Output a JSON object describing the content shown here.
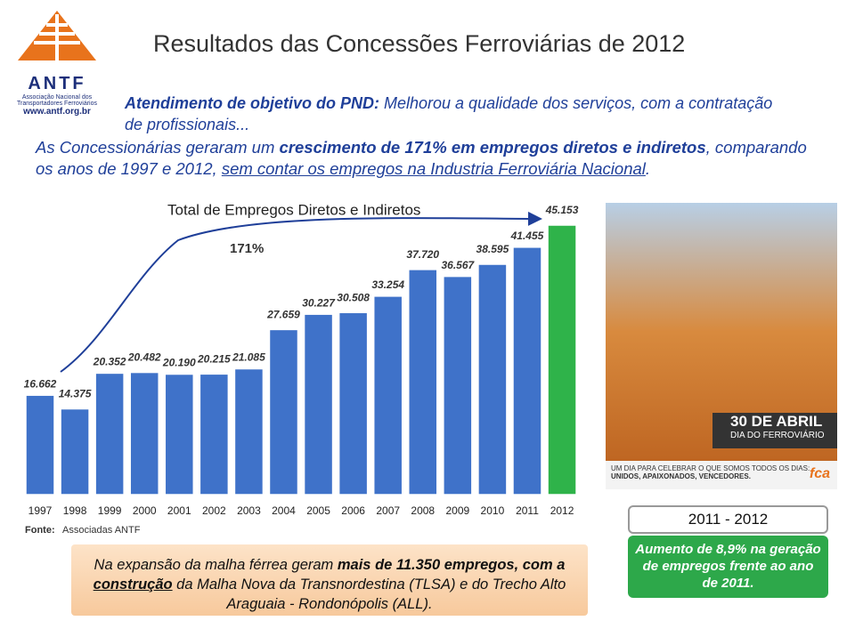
{
  "header": {
    "title": "Resultados das Concessões Ferroviárias de 2012",
    "logo": {
      "name": "ANTF",
      "org": "Associação Nacional dos Transportadores Ferroviários",
      "url": "www.antf.org.br"
    }
  },
  "intro": {
    "lead": "Atendimento de objetivo do PND:",
    "lead_rest": " Melhorou a qualidade dos serviços, com a contratação de profissionais...",
    "segments": [
      "As Concessionárias geraram um ",
      "crescimento de 171% em empregos diretos e indiretos",
      ", comparando os anos de 1997 e 2012, ",
      "sem contar os empregos na Industria Ferroviária Nacional",
      "."
    ]
  },
  "chart_data": {
    "type": "bar",
    "title": "Total de Empregos Diretos e Indiretos",
    "annotation": "171%",
    "categories": [
      "1997",
      "1998",
      "1999",
      "2000",
      "2001",
      "2002",
      "2003",
      "2004",
      "2005",
      "2006",
      "2007",
      "2008",
      "2009",
      "2010",
      "2011",
      "2012"
    ],
    "values": [
      16662,
      14375,
      20352,
      20482,
      20190,
      20215,
      21085,
      27659,
      30227,
      30508,
      33254,
      37720,
      36567,
      38595,
      41455,
      45153
    ],
    "value_labels": [
      "16.662",
      "14.375",
      "20.352",
      "20.482",
      "20.190",
      "20.215",
      "21.085",
      "27.659",
      "30.227",
      "30.508",
      "33.254",
      "37.720",
      "36.567",
      "38.595",
      "41.455",
      "45.153"
    ],
    "colors": [
      "#3f72c9",
      "#3f72c9",
      "#3f72c9",
      "#3f72c9",
      "#3f72c9",
      "#3f72c9",
      "#3f72c9",
      "#3f72c9",
      "#3f72c9",
      "#3f72c9",
      "#3f72c9",
      "#3f72c9",
      "#3f72c9",
      "#3f72c9",
      "#3f72c9",
      "#2fb34a"
    ],
    "source_label": "Fonte:",
    "source": "Associadas ANTF"
  },
  "photo": {
    "date": "30 DE ABRIL",
    "event": "DIA DO FERROVIÁRIO",
    "slogan1": "UM DIA PARA CELEBRAR O QUE SOMOS TODOS OS DIAS:",
    "slogan2": "UNIDOS, APAIXONADOS, VENCEDORES.",
    "brand": "fca"
  },
  "note": {
    "a": "Na expansão da malha férrea geram ",
    "b": "mais de 11.350 empregos, com a",
    "c": "construção",
    "d": " da Malha Nova da Transnordestina (TLSA) e do Trecho Alto Araguaia - Rondonópolis (ALL)."
  },
  "side": {
    "period": "2011 - 2012",
    "text": "Aumento de 8,9% na geração de empregos frente ao ano de 2011."
  }
}
